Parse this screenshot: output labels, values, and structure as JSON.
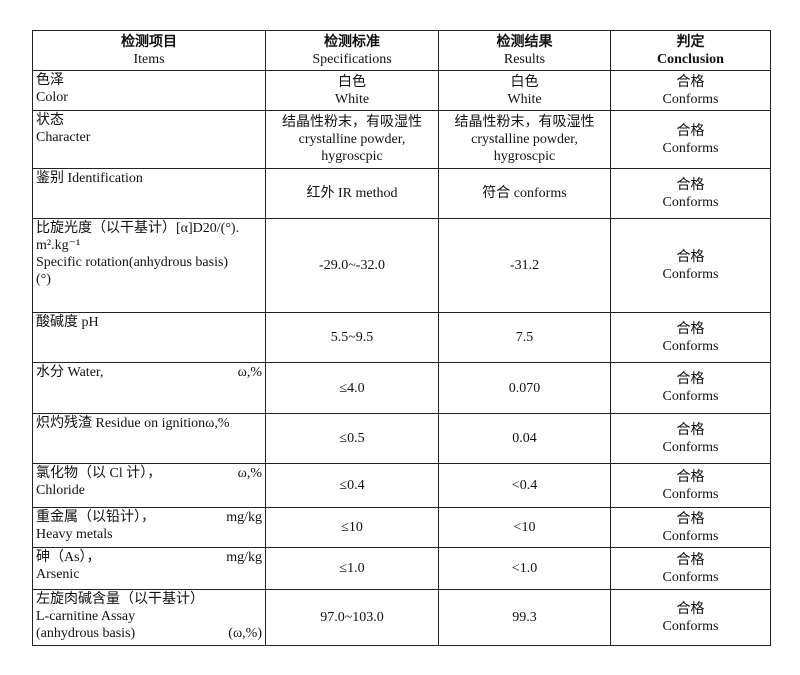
{
  "headers": [
    {
      "zh": "检测项目",
      "en": "Items"
    },
    {
      "zh": "检测标准",
      "en": "Specifications"
    },
    {
      "zh": "检测结果",
      "en": "Results"
    },
    {
      "zh": "判定",
      "en": "Conclusion"
    }
  ],
  "rows": [
    {
      "item": [
        {
          "text": "色泽",
          "unit": ""
        },
        {
          "text": "Color",
          "unit": ""
        }
      ],
      "spec": [
        "白色",
        "White"
      ],
      "result": [
        "白色",
        "White"
      ],
      "conclusion": [
        "合格",
        "Conforms"
      ]
    },
    {
      "item": [
        {
          "text": "状态",
          "unit": ""
        },
        {
          "text": "Character",
          "unit": ""
        }
      ],
      "spec": [
        "结晶性粉末，有吸湿性",
        "crystalline powder,",
        "hygroscpic"
      ],
      "result": [
        "结晶性粉末，有吸湿性",
        "crystalline powder,",
        "hygroscpic"
      ],
      "conclusion": [
        "合格",
        "Conforms"
      ]
    },
    {
      "item": [
        {
          "text": "鉴别 Identification",
          "unit": ""
        }
      ],
      "spec": [
        "红外 IR method"
      ],
      "result": [
        "符合  conforms"
      ],
      "conclusion": [
        "合格",
        "Conforms"
      ]
    },
    {
      "item": [
        {
          "text": "比旋光度（以干基计）[α]D20/(°).",
          "unit": ""
        },
        {
          "text": "m².kg⁻¹",
          "unit": ""
        },
        {
          "text": "Specific rotation(anhydrous basis)",
          "unit": ""
        },
        {
          "text": "(°)",
          "unit": ""
        }
      ],
      "spec": [
        "-29.0~-32.0"
      ],
      "result": [
        "-31.2"
      ],
      "conclusion": [
        "合格",
        "Conforms"
      ]
    },
    {
      "item": [
        {
          "text": "酸碱度 pH",
          "unit": ""
        }
      ],
      "spec": [
        "5.5~9.5"
      ],
      "result": [
        "7.5"
      ],
      "conclusion": [
        "合格",
        "Conforms"
      ]
    },
    {
      "item": [
        {
          "text": "水分 Water,",
          "unit": "ω,%"
        }
      ],
      "spec": [
        "≤4.0"
      ],
      "result": [
        "0.070"
      ],
      "conclusion": [
        "合格",
        "Conforms"
      ]
    },
    {
      "item": [
        {
          "text": "炽灼残渣 Residue on ignitionω,%",
          "unit": ""
        }
      ],
      "spec": [
        "≤0.5"
      ],
      "result": [
        "0.04"
      ],
      "conclusion": [
        "合格",
        "Conforms"
      ]
    },
    {
      "item": [
        {
          "text": "氯化物（以 Cl 计），",
          "unit": "ω,%"
        },
        {
          "text": "Chloride",
          "unit": ""
        }
      ],
      "spec": [
        "≤0.4"
      ],
      "result": [
        "<0.4"
      ],
      "conclusion": [
        "合格",
        "Conforms"
      ]
    },
    {
      "item": [
        {
          "text": "重金属（以铅计），",
          "unit": "mg/kg"
        },
        {
          "text": "Heavy metals",
          "unit": ""
        }
      ],
      "spec": [
        "≤10"
      ],
      "result": [
        "<10"
      ],
      "conclusion": [
        "合格",
        "Conforms"
      ]
    },
    {
      "item": [
        {
          "text": "砷（As），",
          "unit": "mg/kg"
        },
        {
          "text": "Arsenic",
          "unit": ""
        }
      ],
      "spec": [
        "≤1.0"
      ],
      "result": [
        "<1.0"
      ],
      "conclusion": [
        "合格",
        "Conforms"
      ]
    },
    {
      "item": [
        {
          "text": "左旋肉碱含量（以干基计）",
          "unit": ""
        },
        {
          "text": "L-carnitine Assay",
          "unit": ""
        },
        {
          "text": "(anhydrous basis)",
          "unit": "(ω,%)"
        }
      ],
      "spec": [
        "97.0~103.0"
      ],
      "result": [
        "99.3"
      ],
      "conclusion": [
        "合格",
        "Conforms"
      ]
    }
  ]
}
